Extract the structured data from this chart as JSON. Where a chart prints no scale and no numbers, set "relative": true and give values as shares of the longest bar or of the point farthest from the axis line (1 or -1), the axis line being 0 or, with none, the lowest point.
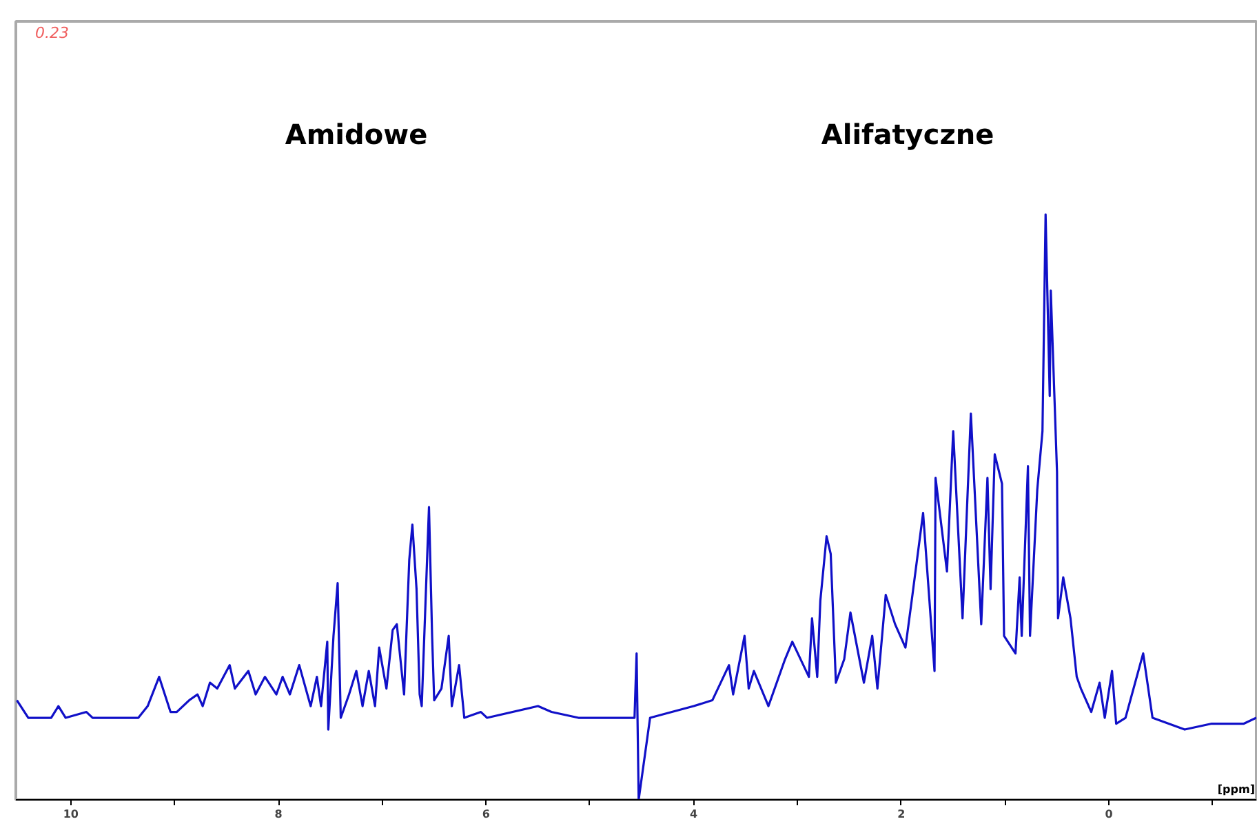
{
  "chart_data": {
    "type": "line",
    "relative": true,
    "xlabel": "[ppm]",
    "xlim": [
      10.53,
      -1.42
    ],
    "xticks": [
      10,
      {
        "value": 9,
        "label": null
      },
      8,
      {
        "value": 7,
        "label": null
      },
      6,
      {
        "value": 5,
        "label": null
      },
      4,
      {
        "value": 3,
        "label": null
      },
      2,
      {
        "value": 1,
        "label": null
      },
      0,
      {
        "value": -1,
        "label": null
      }
    ],
    "grid": false,
    "marker": "none",
    "line_style": "solid",
    "annotations": [
      "0.23",
      "Amidowe",
      "Alifatyczne"
    ],
    "series": [
      {
        "color": "#1010c8",
        "x": [
          10.52,
          10.41,
          10.19,
          10.12,
          10.05,
          9.85,
          9.79,
          9.35,
          9.26,
          9.15,
          9.04,
          8.98,
          8.86,
          8.78,
          8.73,
          8.66,
          8.59,
          8.47,
          8.42,
          8.29,
          8.22,
          8.13,
          8.02,
          7.96,
          7.89,
          7.8,
          7.69,
          7.63,
          7.59,
          7.53,
          7.52,
          7.47,
          7.43,
          7.4,
          7.32,
          7.25,
          7.19,
          7.13,
          7.07,
          7.03,
          6.96,
          6.9,
          6.86,
          6.79,
          6.74,
          6.71,
          6.67,
          6.64,
          6.62,
          6.55,
          6.52,
          6.5,
          6.43,
          6.36,
          6.33,
          6.26,
          6.21,
          6.05,
          5.99,
          5.5,
          5.37,
          5.11,
          4.57,
          4.55,
          4.53,
          4.42,
          4.0,
          3.82,
          3.74,
          3.66,
          3.62,
          3.51,
          3.47,
          3.42,
          3.28,
          3.12,
          3.05,
          2.89,
          2.86,
          2.81,
          2.78,
          2.72,
          2.68,
          2.63,
          2.55,
          2.49,
          2.36,
          2.28,
          2.23,
          2.15,
          2.06,
          1.96,
          1.9,
          1.79,
          1.68,
          1.67,
          1.56,
          1.5,
          1.41,
          1.33,
          1.23,
          1.17,
          1.14,
          1.1,
          1.03,
          1.01,
          0.9,
          0.86,
          0.84,
          0.78,
          0.76,
          0.69,
          0.64,
          0.61,
          0.57,
          0.56,
          0.5,
          0.49,
          0.44,
          0.37,
          0.31,
          0.27,
          0.17,
          0.09,
          0.04,
          -0.03,
          -0.07,
          -0.16,
          -0.33,
          -0.42,
          -0.73,
          -0.99,
          -1.3,
          -1.42
        ],
        "values": [
          0.17,
          0.14,
          0.14,
          0.16,
          0.14,
          0.15,
          0.14,
          0.14,
          0.16,
          0.21,
          0.15,
          0.15,
          0.17,
          0.18,
          0.16,
          0.2,
          0.19,
          0.23,
          0.19,
          0.22,
          0.18,
          0.21,
          0.18,
          0.21,
          0.18,
          0.23,
          0.16,
          0.21,
          0.16,
          0.27,
          0.12,
          0.28,
          0.37,
          0.14,
          0.18,
          0.22,
          0.16,
          0.22,
          0.16,
          0.26,
          0.19,
          0.29,
          0.3,
          0.18,
          0.41,
          0.47,
          0.36,
          0.18,
          0.16,
          0.5,
          0.28,
          0.17,
          0.19,
          0.28,
          0.16,
          0.23,
          0.14,
          0.15,
          0.14,
          0.16,
          0.15,
          0.14,
          0.14,
          0.25,
          0.0,
          0.14,
          0.16,
          0.17,
          0.2,
          0.23,
          0.18,
          0.28,
          0.19,
          0.22,
          0.16,
          0.24,
          0.27,
          0.21,
          0.31,
          0.21,
          0.34,
          0.45,
          0.42,
          0.2,
          0.24,
          0.32,
          0.2,
          0.28,
          0.19,
          0.35,
          0.3,
          0.26,
          0.34,
          0.49,
          0.22,
          0.55,
          0.39,
          0.63,
          0.31,
          0.66,
          0.3,
          0.55,
          0.36,
          0.59,
          0.54,
          0.28,
          0.25,
          0.38,
          0.28,
          0.57,
          0.28,
          0.53,
          0.63,
          1.0,
          0.69,
          0.87,
          0.56,
          0.31,
          0.38,
          0.31,
          0.21,
          0.19,
          0.15,
          0.2,
          0.14,
          0.22,
          0.13,
          0.14,
          0.25,
          0.14,
          0.12,
          0.13,
          0.13,
          0.14
        ]
      }
    ]
  }
}
